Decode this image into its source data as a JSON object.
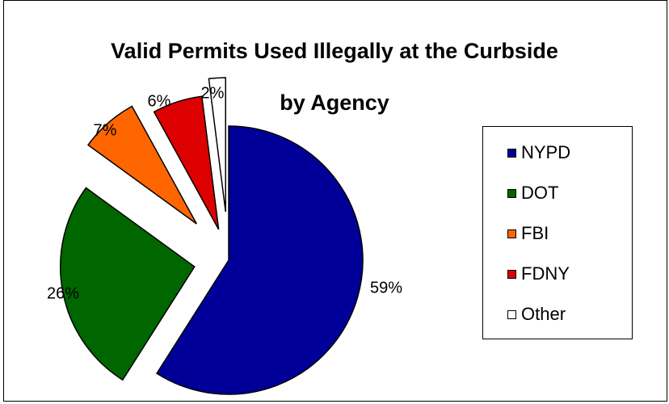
{
  "chart_data": {
    "type": "pie",
    "title": "Valid Permits Used Illegally at the Curbside\nby Agency",
    "categories": [
      "NYPD",
      "DOT",
      "FBI",
      "FDNY",
      "Other"
    ],
    "values": [
      59,
      26,
      7,
      6,
      2
    ],
    "data_labels": [
      "59%",
      "26%",
      "7%",
      "6%",
      "2%"
    ],
    "colors": [
      "#000099",
      "#006600",
      "#ff6600",
      "#dd0000",
      "#ffffff"
    ],
    "exploded": true,
    "legend_position": "right"
  }
}
